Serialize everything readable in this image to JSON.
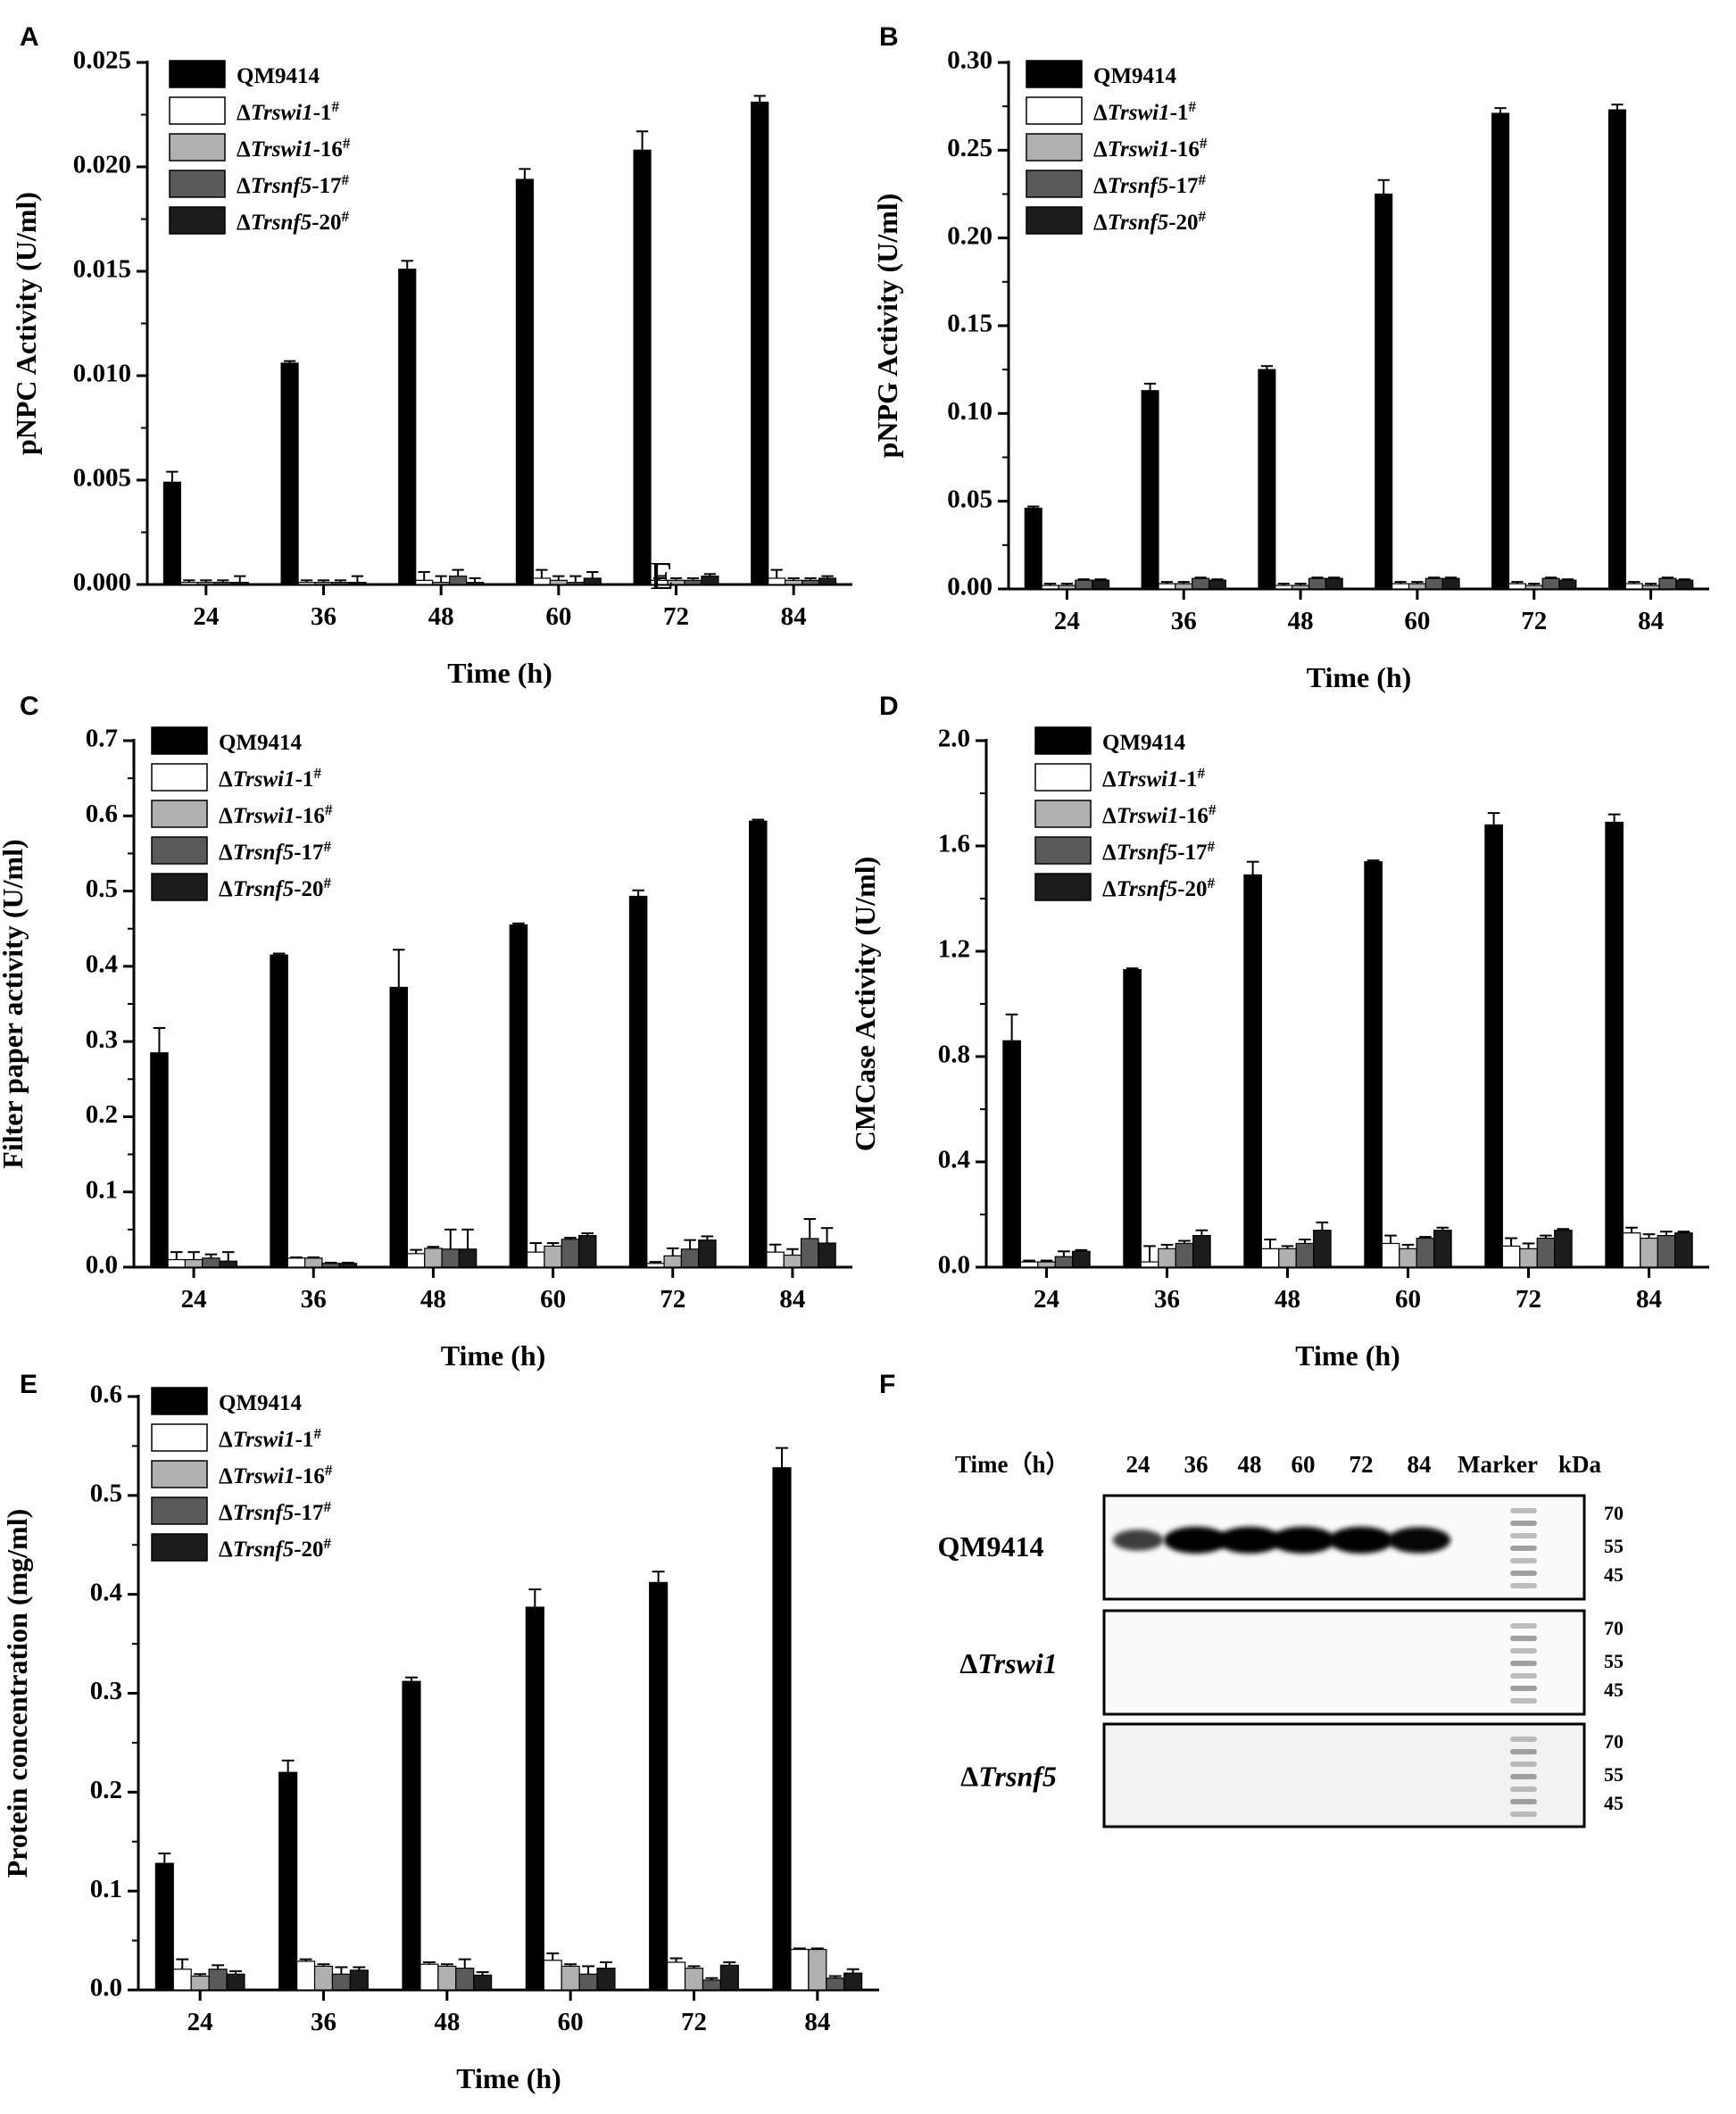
{
  "chart_data": [
    {
      "panel": "A",
      "type": "bar",
      "ylabel": "pNPC Activity (U/ml)",
      "xlabel": "Time (h)",
      "categories": [
        "24",
        "36",
        "48",
        "60",
        "72",
        "84"
      ],
      "ylim": [
        0,
        0.025
      ],
      "yticks": [
        "0.000",
        "0.005",
        "0.010",
        "0.015",
        "0.020",
        "0.025"
      ],
      "legend_position": "top-left",
      "series": [
        {
          "name": "QM9414",
          "color": "#000000",
          "values": [
            0.0049,
            0.0106,
            0.0151,
            0.0194,
            0.0208,
            0.0231
          ],
          "errors": [
            0.0005,
            0.0001,
            0.0004,
            0.0005,
            0.0009,
            0.0003
          ]
        },
        {
          "name": "ΔTrswi1-1#",
          "color": "#ffffff",
          "values": [
            0.0001,
            0.0001,
            0.0002,
            0.0003,
            0.0002,
            0.0003
          ],
          "errors": [
            0.0001,
            0.0001,
            0.0004,
            0.0004,
            0.0001,
            0.0004
          ]
        },
        {
          "name": "ΔTrswi1-16#",
          "color": "#b0b0b0",
          "values": [
            0.0001,
            0.0001,
            0.0001,
            0.0002,
            0.0002,
            0.0002
          ],
          "errors": [
            0.0001,
            0.0001,
            0.0003,
            0.0002,
            0.0001,
            0.0001
          ]
        },
        {
          "name": "ΔTrsnf5-17#",
          "color": "#5a5a5a",
          "values": [
            0.0001,
            0.0001,
            0.0004,
            0.0001,
            0.0002,
            0.0002
          ],
          "errors": [
            0.0001,
            0.0001,
            0.0003,
            0.0003,
            0.0001,
            0.0001
          ]
        },
        {
          "name": "ΔTrsnf5-20#",
          "color": "#1c1c1c",
          "values": [
            0.0001,
            0.0001,
            0.0001,
            0.0003,
            0.0004,
            0.0003
          ],
          "errors": [
            0.0003,
            0.0003,
            0.0002,
            0.0003,
            0.0001,
            0.0001
          ]
        }
      ]
    },
    {
      "panel": "B",
      "type": "bar",
      "ylabel": "pNPG Activity (U/ml)",
      "xlabel": "Time (h)",
      "categories": [
        "24",
        "36",
        "48",
        "60",
        "72",
        "84"
      ],
      "ylim": [
        0,
        0.3
      ],
      "yticks": [
        "0.00",
        "0.05",
        "0.10",
        "0.15",
        "0.20",
        "0.25",
        "0.30"
      ],
      "legend_position": "top-left",
      "series": [
        {
          "name": "QM9414",
          "color": "#000000",
          "values": [
            0.046,
            0.113,
            0.125,
            0.225,
            0.271,
            0.273
          ],
          "errors": [
            0.001,
            0.004,
            0.002,
            0.008,
            0.003,
            0.003
          ]
        },
        {
          "name": "ΔTrswi1-1#",
          "color": "#ffffff",
          "values": [
            0.002,
            0.003,
            0.002,
            0.003,
            0.003,
            0.003
          ],
          "errors": [
            0.001,
            0.001,
            0.001,
            0.001,
            0.001,
            0.001
          ]
        },
        {
          "name": "ΔTrswi1-16#",
          "color": "#b0b0b0",
          "values": [
            0.002,
            0.003,
            0.002,
            0.003,
            0.002,
            0.002
          ],
          "errors": [
            0.001,
            0.001,
            0.001,
            0.001,
            0.001,
            0.001
          ]
        },
        {
          "name": "ΔTrsnf5-17#",
          "color": "#5a5a5a",
          "values": [
            0.005,
            0.006,
            0.006,
            0.006,
            0.006,
            0.006
          ],
          "errors": [
            0.0005,
            0.0005,
            0.0005,
            0.0005,
            0.0005,
            0.0005
          ]
        },
        {
          "name": "ΔTrsnf5-20#",
          "color": "#1c1c1c",
          "values": [
            0.005,
            0.005,
            0.006,
            0.006,
            0.005,
            0.005
          ],
          "errors": [
            0.0005,
            0.0005,
            0.0005,
            0.0005,
            0.0005,
            0.0005
          ]
        }
      ]
    },
    {
      "panel": "C",
      "type": "bar",
      "ylabel": "Filter paper activity (U/ml)",
      "xlabel": "Time (h)",
      "categories": [
        "24",
        "36",
        "48",
        "60",
        "72",
        "84"
      ],
      "ylim": [
        0,
        0.7
      ],
      "yticks": [
        "0.0",
        "0.1",
        "0.2",
        "0.3",
        "0.4",
        "0.5",
        "0.6",
        "0.7"
      ],
      "legend_position": "top-left",
      "series": [
        {
          "name": "QM9414",
          "color": "#000000",
          "values": [
            0.285,
            0.415,
            0.372,
            0.455,
            0.493,
            0.593
          ],
          "errors": [
            0.033,
            0.002,
            0.05,
            0.002,
            0.008,
            0.002
          ]
        },
        {
          "name": "ΔTrswi1-1#",
          "color": "#ffffff",
          "values": [
            0.01,
            0.012,
            0.018,
            0.02,
            0.005,
            0.02
          ],
          "errors": [
            0.01,
            0.001,
            0.005,
            0.012,
            0.002,
            0.01
          ]
        },
        {
          "name": "ΔTrswi1-16#",
          "color": "#b0b0b0",
          "values": [
            0.01,
            0.012,
            0.025,
            0.028,
            0.015,
            0.016
          ],
          "errors": [
            0.01,
            0.001,
            0.002,
            0.004,
            0.01,
            0.008
          ]
        },
        {
          "name": "ΔTrsnf5-17#",
          "color": "#5a5a5a",
          "values": [
            0.012,
            0.005,
            0.024,
            0.037,
            0.024,
            0.038
          ],
          "errors": [
            0.005,
            0.001,
            0.026,
            0.002,
            0.012,
            0.026
          ]
        },
        {
          "name": "ΔTrsnf5-20#",
          "color": "#1c1c1c",
          "values": [
            0.008,
            0.005,
            0.024,
            0.042,
            0.036,
            0.032
          ],
          "errors": [
            0.012,
            0.001,
            0.026,
            0.003,
            0.005,
            0.02
          ]
        }
      ]
    },
    {
      "panel": "D",
      "type": "bar",
      "ylabel": "CMCase Activity (U/ml)",
      "xlabel": "Time (h)",
      "categories": [
        "24",
        "36",
        "48",
        "60",
        "72",
        "84"
      ],
      "ylim": [
        0,
        2.0
      ],
      "yticks": [
        "0.0",
        "0.4",
        "0.8",
        "1.2",
        "1.6",
        "2.0"
      ],
      "legend_position": "top-left",
      "series": [
        {
          "name": "QM9414",
          "color": "#000000",
          "values": [
            0.86,
            1.13,
            1.49,
            1.54,
            1.68,
            1.69
          ],
          "errors": [
            0.1,
            0.005,
            0.05,
            0.005,
            0.045,
            0.03
          ]
        },
        {
          "name": "ΔTrswi1-1#",
          "color": "#ffffff",
          "values": [
            0.02,
            0.02,
            0.07,
            0.09,
            0.08,
            0.13
          ],
          "errors": [
            0.005,
            0.06,
            0.035,
            0.03,
            0.03,
            0.02
          ]
        },
        {
          "name": "ΔTrswi1-16#",
          "color": "#b0b0b0",
          "values": [
            0.02,
            0.07,
            0.07,
            0.07,
            0.07,
            0.11
          ],
          "errors": [
            0.005,
            0.015,
            0.01,
            0.015,
            0.02,
            0.015
          ]
        },
        {
          "name": "ΔTrsnf5-17#",
          "color": "#5a5a5a",
          "values": [
            0.04,
            0.09,
            0.09,
            0.11,
            0.11,
            0.12
          ],
          "errors": [
            0.02,
            0.01,
            0.015,
            0.005,
            0.01,
            0.015
          ]
        },
        {
          "name": "ΔTrsnf5-20#",
          "color": "#1c1c1c",
          "values": [
            0.06,
            0.12,
            0.14,
            0.14,
            0.14,
            0.13
          ],
          "errors": [
            0.005,
            0.02,
            0.03,
            0.01,
            0.005,
            0.005
          ]
        }
      ]
    },
    {
      "panel": "E",
      "type": "bar",
      "ylabel": "Protein concentration (mg/ml)",
      "xlabel": "Time (h)",
      "categories": [
        "24",
        "36",
        "48",
        "60",
        "72",
        "84"
      ],
      "ylim": [
        0,
        0.6
      ],
      "yticks": [
        "0.0",
        "0.1",
        "0.2",
        "0.3",
        "0.4",
        "0.5",
        "0.6"
      ],
      "legend_position": "top-left",
      "series": [
        {
          "name": "QM9414",
          "color": "#000000",
          "values": [
            0.128,
            0.22,
            0.312,
            0.387,
            0.412,
            0.528
          ],
          "errors": [
            0.01,
            0.012,
            0.004,
            0.018,
            0.011,
            0.02
          ]
        },
        {
          "name": "ΔTrswi1-1#",
          "color": "#ffffff",
          "values": [
            0.021,
            0.029,
            0.026,
            0.03,
            0.028,
            0.041
          ],
          "errors": [
            0.01,
            0.002,
            0.002,
            0.007,
            0.004,
            0.001
          ]
        },
        {
          "name": "ΔTrswi1-16#",
          "color": "#b0b0b0",
          "values": [
            0.014,
            0.024,
            0.024,
            0.024,
            0.022,
            0.041
          ],
          "errors": [
            0.002,
            0.002,
            0.002,
            0.002,
            0.002,
            0.001
          ]
        },
        {
          "name": "ΔTrsnf5-17#",
          "color": "#5a5a5a",
          "values": [
            0.021,
            0.016,
            0.022,
            0.016,
            0.01,
            0.012
          ],
          "errors": [
            0.004,
            0.007,
            0.009,
            0.008,
            0.002,
            0.002
          ]
        },
        {
          "name": "ΔTrsnf5-20#",
          "color": "#1c1c1c",
          "values": [
            0.016,
            0.02,
            0.015,
            0.022,
            0.025,
            0.017
          ],
          "errors": [
            0.003,
            0.003,
            0.003,
            0.006,
            0.003,
            0.004
          ]
        }
      ]
    }
  ],
  "panel_a_stray_glyph": "E",
  "western_blot": {
    "panel": "F",
    "time_label": "Time（h）",
    "lanes": [
      "24",
      "36",
      "48",
      "60",
      "72",
      "84"
    ],
    "marker_label": "Marker",
    "unit_label": "kDa",
    "rows": [
      {
        "label": "QM9414",
        "marker_sizes": [
          "70",
          "55",
          "45"
        ],
        "band_intensity": [
          0.55,
          1.0,
          1.0,
          1.0,
          1.0,
          0.95
        ]
      },
      {
        "label_prefix": "Δ",
        "label_gene": "Trswi1",
        "marker_sizes": [
          "70",
          "55",
          "45"
        ],
        "band_intensity": [
          0,
          0,
          0,
          0,
          0,
          0
        ]
      },
      {
        "label_prefix": "Δ",
        "label_gene": "Trsnf5",
        "marker_sizes": [
          "70",
          "55",
          "45"
        ],
        "band_intensity": [
          0,
          0,
          0,
          0,
          0,
          0
        ]
      }
    ]
  }
}
